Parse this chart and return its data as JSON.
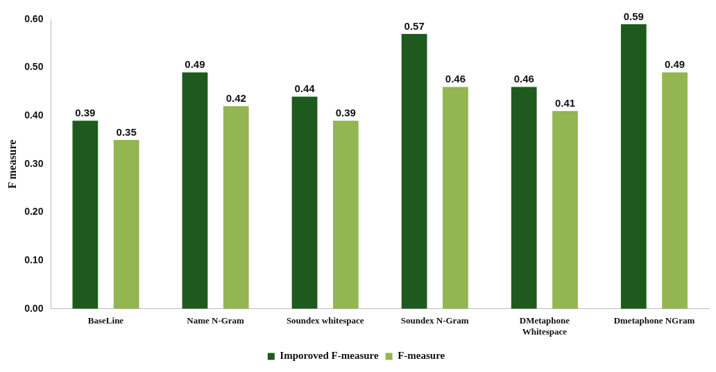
{
  "chart_data": {
    "type": "bar",
    "ylabel": "F measure",
    "categories": [
      "BaseLine",
      "Name N-Gram",
      "Soundex whitespace",
      "Soundex N-Gram",
      "DMetaphone\nWhitespace",
      "Dmetaphone NGram"
    ],
    "series": [
      {
        "name": "Imporoved F-measure",
        "color": "#1e5a1e",
        "values": [
          0.39,
          0.49,
          0.44,
          0.57,
          0.46,
          0.59
        ]
      },
      {
        "name": "F-measure",
        "color": "#93b552",
        "values": [
          0.35,
          0.42,
          0.39,
          0.46,
          0.41,
          0.49
        ]
      }
    ],
    "ylim": [
      0,
      0.6
    ],
    "yticks": [
      {
        "value": 0,
        "label": "0.00"
      },
      {
        "value": 0.1,
        "label": "0.10"
      },
      {
        "value": 0.2,
        "label": "0.20"
      },
      {
        "value": 0.3,
        "label": "0.30"
      },
      {
        "value": 0.4,
        "label": "0.40"
      },
      {
        "value": 0.5,
        "label": "0.50"
      },
      {
        "value": 0.6,
        "label": "0.60"
      }
    ],
    "grid": false,
    "legend": "bottom",
    "data_labels": true
  }
}
